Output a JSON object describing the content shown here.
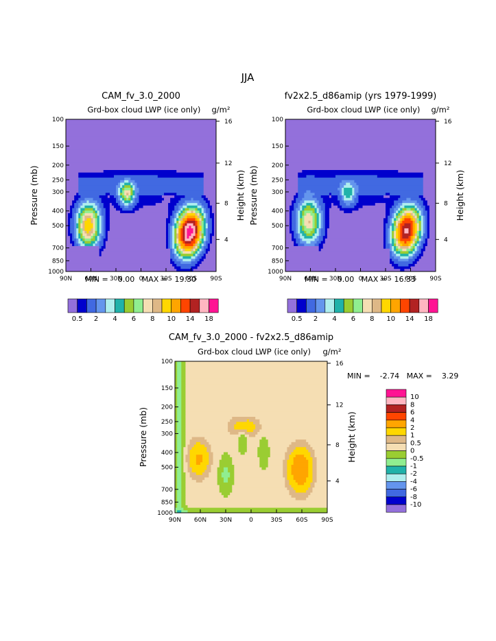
{
  "page_title": "JJA",
  "chart_data": [
    {
      "type": "heatmap",
      "title": "CAM_fv_3.0_2000",
      "subtitle": "Grd-box cloud LWP (ice only)",
      "units": "g/m²",
      "xlabel": "",
      "ylabel": "Pressure (mb)",
      "ylabel_right": "Height (km)",
      "x_ticks": [
        "90N",
        "60N",
        "30N",
        "0",
        "30S",
        "60S",
        "90S"
      ],
      "y_ticks": [
        100,
        150,
        200,
        250,
        300,
        400,
        500,
        700,
        850,
        1000
      ],
      "height_ticks": [
        16,
        12,
        8,
        4
      ],
      "xlim": [
        90,
        -90
      ],
      "ylim": [
        1000,
        100
      ],
      "y_scale": "log",
      "stats": "MIN =    0.00   MAX =   19.30",
      "colorbar_labels": [
        "0.5",
        "2",
        "4",
        "6",
        "8",
        "10",
        "14",
        "18"
      ],
      "features": [
        {
          "lat": 63,
          "p": 500,
          "peak": 10
        },
        {
          "lat": 17,
          "p": 310,
          "peak": 7
        },
        {
          "lat": -58,
          "p": 550,
          "peak": 19.3
        }
      ]
    },
    {
      "type": "heatmap",
      "title": "fv2x2.5_d86amip (yrs 1979-1999)",
      "subtitle": "Grd-box cloud LWP (ice only)",
      "units": "g/m²",
      "xlabel": "",
      "ylabel": "Pressure (mb)",
      "ylabel_right": "Height (km)",
      "x_ticks": [
        "90N",
        "60N",
        "30N",
        "0",
        "30S",
        "60S",
        "90S"
      ],
      "y_ticks": [
        100,
        150,
        200,
        250,
        300,
        400,
        500,
        700,
        850,
        1000
      ],
      "height_ticks": [
        16,
        12,
        8,
        4
      ],
      "xlim": [
        90,
        -90
      ],
      "ylim": [
        1000,
        100
      ],
      "y_scale": "log",
      "stats": "MIN =    0.00   MAX =   16.33",
      "colorbar_labels": [
        "0.5",
        "2",
        "4",
        "6",
        "8",
        "10",
        "14",
        "18"
      ],
      "features": [
        {
          "lat": 62,
          "p": 470,
          "peak": 8
        },
        {
          "lat": 15,
          "p": 310,
          "peak": 4
        },
        {
          "lat": -55,
          "p": 540,
          "peak": 16.33
        }
      ]
    },
    {
      "type": "heatmap",
      "title": "CAM_fv_3.0_2000 - fv2x2.5_d86amip",
      "subtitle": "Grd-box cloud LWP (ice only)",
      "units": "g/m²",
      "xlabel": "",
      "ylabel": "Pressure (mb)",
      "ylabel_right": "Height (km)",
      "x_ticks": [
        "90N",
        "60N",
        "30N",
        "0",
        "30S",
        "60S",
        "90S"
      ],
      "y_ticks": [
        100,
        150,
        200,
        250,
        300,
        400,
        500,
        700,
        850,
        1000
      ],
      "height_ticks": [
        16,
        12,
        8,
        4
      ],
      "xlim": [
        90,
        -90
      ],
      "ylim": [
        1000,
        100
      ],
      "y_scale": "log",
      "stats": "MIN =    -2.74   MAX =    3.29",
      "colorbar_labels": [
        "10",
        "8",
        "6",
        "4",
        "2",
        "1",
        "0.5",
        "0",
        "-0.5",
        "-1",
        "-2",
        "-4",
        "-6",
        "-8",
        "-10"
      ],
      "features": [
        {
          "lat": 62,
          "p": 440,
          "peak": 2
        },
        {
          "lat": 8,
          "p": 270,
          "peak": 1.5
        },
        {
          "lat": -58,
          "p": 520,
          "peak": 3.29
        }
      ]
    }
  ],
  "colors": {
    "abs_scale": [
      "#9370DB",
      "#0000CD",
      "#4169E1",
      "#6495ED",
      "#AFEEEE",
      "#20B2AA",
      "#9ACD32",
      "#90EE90",
      "#F5DEB3",
      "#DEB887",
      "#FFD700",
      "#FFA500",
      "#FF4500",
      "#B22222",
      "#FFB6C1",
      "#FF1493"
    ],
    "diff_scale": [
      "#FF1493",
      "#FFB6C1",
      "#B22222",
      "#FF4500",
      "#FFA500",
      "#FFD700",
      "#DEB887",
      "#F5DEB3",
      "#9ACD32",
      "#90EE90",
      "#20B2AA",
      "#AFEEEE",
      "#6495ED",
      "#4169E1",
      "#0000CD",
      "#9370DB"
    ]
  }
}
